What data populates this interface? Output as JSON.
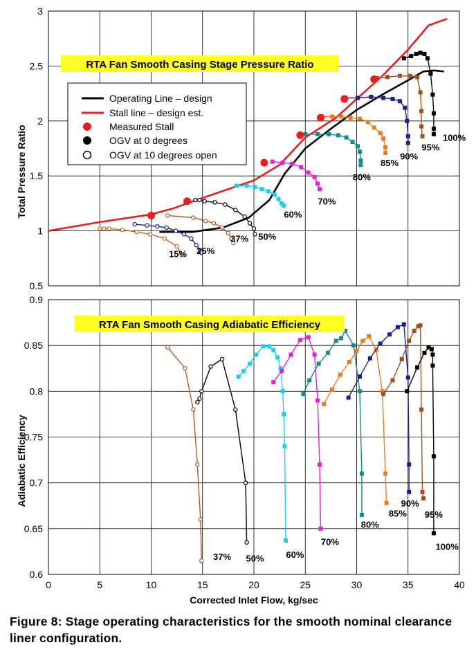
{
  "caption": "Figure 8:  Stage operating characteristics for the smooth nominal clearance liner configuration.",
  "chart_data": [
    {
      "type": "line",
      "title": "RTA Fan Smooth Casing Stage Pressure Ratio",
      "ylabel": "Total Pressure Ratio",
      "xlim": [
        0,
        40
      ],
      "ylim": [
        0.5,
        3
      ],
      "yticks": [
        "0.5",
        "1",
        "1.5",
        "2",
        "2.5",
        "3"
      ],
      "grid": true,
      "legend_position": "upper-left",
      "legend": [
        {
          "label": "Operating Line – design",
          "kind": "line",
          "color": "#000000"
        },
        {
          "label": "Stall line – design  est.",
          "kind": "line",
          "color": "#ee1c1c"
        },
        {
          "label": "Measured Stall",
          "kind": "dot",
          "color": "#ee1c1c"
        },
        {
          "label": "OGV  at 0 degrees",
          "kind": "dot",
          "color": "#000000"
        },
        {
          "label": "OGV at 10 degrees open",
          "kind": "circle",
          "color": "#000000"
        }
      ],
      "operating_line": {
        "color": "#000000",
        "x": [
          10.8,
          14,
          17,
          19.5,
          21.5,
          23,
          25,
          27.5,
          30,
          32.5,
          35,
          36.5,
          37.5,
          38.5
        ],
        "y": [
          0.99,
          0.99,
          1.03,
          1.12,
          1.28,
          1.52,
          1.75,
          1.93,
          2.1,
          2.24,
          2.37,
          2.45,
          2.46,
          2.45
        ]
      },
      "stall_line": {
        "color": "#ee1c1c",
        "x": [
          0,
          5,
          10,
          12,
          15,
          20,
          22.5,
          25,
          28,
          30,
          32.5,
          35,
          37,
          38.8
        ],
        "y": [
          1.0,
          1.08,
          1.15,
          1.2,
          1.3,
          1.46,
          1.6,
          1.85,
          2.03,
          2.2,
          2.41,
          2.65,
          2.87,
          2.93
        ]
      },
      "measured_stall": {
        "color": "#ee1c1c",
        "x": [
          10,
          13.5,
          21,
          24.5,
          26.5,
          28.8,
          31.7
        ],
        "y": [
          1.14,
          1.27,
          1.62,
          1.87,
          2.03,
          2.2,
          2.38
        ]
      },
      "series": [
        {
          "name": "15%",
          "color": "#c8641e",
          "marker": "open-circle",
          "x": [
            5.0,
            5.4,
            5.9,
            7.2,
            8.6,
            9.9,
            11.3,
            12.5,
            13.0
          ],
          "y": [
            1.02,
            1.02,
            1.02,
            1.01,
            0.99,
            0.97,
            0.93,
            0.86,
            0.78
          ]
        },
        {
          "name": "25%",
          "color": "#1a1f8c",
          "marker": "open-circle",
          "x": [
            8.4,
            9.6,
            10.6,
            11.5,
            12.4,
            13.2,
            13.9,
            14.4,
            14.8,
            14.9
          ],
          "y": [
            1.06,
            1.05,
            1.04,
            1.03,
            1.0,
            0.97,
            0.93,
            0.87,
            0.82,
            0.8
          ]
        },
        {
          "name": "37%",
          "color": "#b05a1a",
          "marker": "open-circle",
          "x": [
            11.6,
            14.1,
            15.3,
            16.1,
            16.9,
            17.5,
            17.8,
            18.0
          ],
          "y": [
            1.14,
            1.12,
            1.09,
            1.07,
            1.03,
            0.98,
            0.93,
            0.89
          ]
        },
        {
          "name": "50%",
          "color": "#000000",
          "marker": "open-circle",
          "x": [
            14.3,
            14.7,
            15.2,
            16.2,
            17.2,
            18.2,
            19.1,
            19.6,
            20.0,
            20.1
          ],
          "y": [
            1.28,
            1.28,
            1.27,
            1.26,
            1.24,
            1.19,
            1.13,
            1.07,
            1.02,
            0.97
          ]
        },
        {
          "name": "60%",
          "color": "#1ad0ee",
          "marker": "square",
          "x": [
            18.3,
            19.3,
            20.1,
            20.8,
            21.4,
            22.0,
            22.4,
            22.7,
            22.9
          ],
          "y": [
            1.41,
            1.41,
            1.4,
            1.38,
            1.36,
            1.33,
            1.29,
            1.25,
            1.23
          ]
        },
        {
          "name": "70%",
          "color": "#e61ed7",
          "marker": "square",
          "x": [
            21.8,
            22.8,
            23.7,
            24.6,
            25.3,
            25.9,
            26.2,
            26.4
          ],
          "y": [
            1.63,
            1.62,
            1.61,
            1.58,
            1.53,
            1.49,
            1.43,
            1.38
          ]
        },
        {
          "name": "80%",
          "color": "#148c8c",
          "marker": "square",
          "x": [
            25.0,
            26.2,
            27.3,
            28.2,
            29.0,
            29.6,
            30.1,
            30.3,
            30.4,
            30.4
          ],
          "y": [
            1.88,
            1.88,
            1.88,
            1.87,
            1.85,
            1.81,
            1.77,
            1.72,
            1.64,
            1.6
          ]
        },
        {
          "name": "85%",
          "color": "#f0781e",
          "marker": "square",
          "x": [
            26.6,
            27.6,
            28.5,
            29.4,
            30.3,
            31.1,
            31.7,
            32.3,
            32.6,
            32.8,
            32.8
          ],
          "y": [
            2.04,
            2.04,
            2.04,
            2.03,
            2.02,
            1.99,
            1.94,
            1.89,
            1.84,
            1.76,
            1.71
          ]
        },
        {
          "name": "90%",
          "color": "#1a1f8c",
          "marker": "square",
          "x": [
            28.9,
            30.1,
            31.4,
            32.6,
            33.5,
            34.2,
            34.7,
            34.9,
            35.0,
            35.0
          ],
          "y": [
            2.21,
            2.21,
            2.22,
            2.21,
            2.2,
            2.18,
            2.12,
            2.0,
            1.86,
            1.8
          ]
        },
        {
          "name": "95%",
          "color": "#a0501a",
          "marker": "square",
          "x": [
            32.0,
            33.0,
            34.2,
            35.2,
            35.9,
            36.2,
            36.3,
            36.3,
            36.4
          ],
          "y": [
            2.39,
            2.4,
            2.41,
            2.41,
            2.4,
            2.26,
            2.09,
            1.95,
            1.86
          ]
        },
        {
          "name": "100%",
          "color": "#000000",
          "marker": "square",
          "x": [
            34.6,
            35.3,
            35.8,
            36.2,
            36.6,
            36.9,
            37.2,
            37.4,
            37.5,
            37.5,
            37.5
          ],
          "y": [
            2.57,
            2.59,
            2.61,
            2.62,
            2.61,
            2.57,
            2.43,
            2.24,
            2.07,
            1.93,
            1.88
          ]
        }
      ],
      "series_labels": [
        {
          "text": "15%",
          "x": 12.6,
          "y": 0.76
        },
        {
          "text": "25%",
          "x": 15.3,
          "y": 0.79
        },
        {
          "text": "37%",
          "x": 18.6,
          "y": 0.9
        },
        {
          "text": "50%",
          "x": 21.3,
          "y": 0.92
        },
        {
          "text": "60%",
          "x": 23.8,
          "y": 1.12
        },
        {
          "text": "70%",
          "x": 27.1,
          "y": 1.24
        },
        {
          "text": "80%",
          "x": 30.5,
          "y": 1.46
        },
        {
          "text": "85%",
          "x": 33.2,
          "y": 1.59
        },
        {
          "text": "90%",
          "x": 35.1,
          "y": 1.65
        },
        {
          "text": "95%",
          "x": 37.2,
          "y": 1.73
        },
        {
          "text": "100%",
          "x": 39.5,
          "y": 1.82
        }
      ]
    },
    {
      "type": "line",
      "title": "RTA Fan Smooth Casing Adiabatic Efficiency",
      "xlabel": "Corrected Inlet Flow, kg/sec",
      "ylabel": "Adiabatic Efficiency",
      "xlim": [
        0,
        40
      ],
      "ylim": [
        0.6,
        0.9
      ],
      "xticks": [
        "0",
        "5",
        "10",
        "15",
        "20",
        "25",
        "30",
        "35",
        "40"
      ],
      "yticks": [
        "0.6",
        "0.65",
        "0.7",
        "0.75",
        "0.8",
        "0.85",
        "0.9"
      ],
      "grid": true,
      "series": [
        {
          "name": "37%",
          "color": "#b05a1a",
          "marker": "open-circle",
          "x": [
            11.6,
            13.3,
            14.1,
            14.5,
            14.8,
            14.9
          ],
          "y": [
            0.848,
            0.825,
            0.78,
            0.72,
            0.66,
            0.615
          ]
        },
        {
          "name": "50%",
          "color": "#000000",
          "marker": "open-circle",
          "x": [
            14.5,
            14.7,
            14.9,
            15.8,
            16.9,
            18.2,
            19.2,
            19.3
          ],
          "y": [
            0.788,
            0.792,
            0.8,
            0.827,
            0.835,
            0.78,
            0.7,
            0.635
          ]
        },
        {
          "name": "60%",
          "color": "#1ad0ee",
          "marker": "square",
          "x": [
            18.5,
            19.0,
            19.6,
            20.2,
            20.9,
            21.5,
            21.9,
            22.3,
            22.6,
            22.8,
            22.9,
            23.0,
            23.1
          ],
          "y": [
            0.816,
            0.822,
            0.83,
            0.84,
            0.849,
            0.849,
            0.845,
            0.837,
            0.825,
            0.8,
            0.775,
            0.74,
            0.637
          ]
        },
        {
          "name": "70%",
          "color": "#e61ed7",
          "marker": "square",
          "x": [
            21.9,
            22.7,
            23.6,
            24.5,
            25.3,
            25.9,
            26.2,
            26.4,
            26.5
          ],
          "y": [
            0.81,
            0.822,
            0.84,
            0.856,
            0.859,
            0.84,
            0.79,
            0.72,
            0.65
          ]
        },
        {
          "name": "80%",
          "color": "#148c8c",
          "marker": "square",
          "x": [
            24.8,
            25.4,
            26.3,
            27.2,
            28.0,
            28.5,
            28.9,
            29.7,
            30.3,
            30.5,
            30.5
          ],
          "y": [
            0.797,
            0.812,
            0.83,
            0.842,
            0.855,
            0.858,
            0.866,
            0.85,
            0.8,
            0.71,
            0.665
          ]
        },
        {
          "name": "85%",
          "color": "#f0781e",
          "marker": "square",
          "x": [
            26.8,
            27.6,
            28.4,
            29.3,
            30.0,
            30.6,
            31.2,
            31.9,
            32.5,
            32.8,
            32.9
          ],
          "y": [
            0.786,
            0.802,
            0.818,
            0.832,
            0.844,
            0.855,
            0.86,
            0.845,
            0.8,
            0.71,
            0.678
          ]
        },
        {
          "name": "90%",
          "color": "#1a1f8c",
          "marker": "square",
          "x": [
            29.2,
            30.3,
            31.3,
            32.3,
            33.2,
            34.0,
            34.6,
            35.0,
            35.1,
            35.1
          ],
          "y": [
            0.793,
            0.816,
            0.836,
            0.852,
            0.862,
            0.87,
            0.873,
            0.815,
            0.72,
            0.69
          ]
        },
        {
          "name": "95%",
          "color": "#a0501a",
          "marker": "square",
          "x": [
            32.6,
            33.5,
            34.4,
            35.1,
            35.6,
            36.0,
            36.2,
            36.3,
            36.4,
            36.5
          ],
          "y": [
            0.797,
            0.812,
            0.835,
            0.855,
            0.866,
            0.871,
            0.872,
            0.78,
            0.69,
            0.683
          ]
        },
        {
          "name": "100%",
          "color": "#000000",
          "marker": "square",
          "x": [
            34.9,
            35.9,
            36.6,
            37.0,
            37.3,
            37.4,
            37.4,
            37.5,
            37.5
          ],
          "y": [
            0.8,
            0.826,
            0.842,
            0.848,
            0.846,
            0.84,
            0.828,
            0.729,
            0.645
          ]
        }
      ],
      "series_labels": [
        {
          "text": "37%",
          "x": 16.9,
          "y": 0.616
        },
        {
          "text": "50%",
          "x": 20.1,
          "y": 0.614
        },
        {
          "text": "60%",
          "x": 24.0,
          "y": 0.618
        },
        {
          "text": "70%",
          "x": 27.4,
          "y": 0.632
        },
        {
          "text": "80%",
          "x": 31.3,
          "y": 0.651
        },
        {
          "text": "85%",
          "x": 34.0,
          "y": 0.663
        },
        {
          "text": "90%",
          "x": 35.2,
          "y": 0.674
        },
        {
          "text": "95%",
          "x": 37.5,
          "y": 0.662
        },
        {
          "text": "100%",
          "x": 38.8,
          "y": 0.627
        }
      ]
    }
  ]
}
